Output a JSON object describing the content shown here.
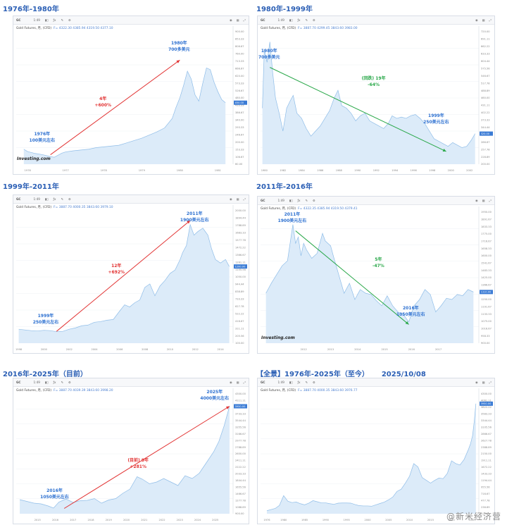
{
  "panels": [
    {
      "title": "1976年-1980年",
      "legend": "Gold Futures, 月, (CFD)",
      "ohlc": "F= 4322.30  4385.94  4319.50  4377.10",
      "show_logo": true,
      "logo_text": "Investing.com",
      "chart_data": {
        "type": "area",
        "x": [
          1975.9,
          1976.0,
          1976.2,
          1976.4,
          1976.6,
          1976.7,
          1976.9,
          1977.0,
          1977.2,
          1977.4,
          1977.6,
          1977.8,
          1978.0,
          1978.2,
          1978.4,
          1978.6,
          1978.8,
          1979.0,
          1979.2,
          1979.4,
          1979.6,
          1979.8,
          1979.9,
          1980.0,
          1980.1,
          1980.2,
          1980.3,
          1980.4,
          1980.5,
          1980.6,
          1980.7,
          1980.8,
          1980.9,
          1981.0,
          1981.1,
          1981.2
        ],
        "y": [
          155,
          140,
          128,
          120,
          108,
          104,
          130,
          138,
          145,
          150,
          155,
          165,
          170,
          175,
          180,
          195,
          210,
          225,
          245,
          265,
          290,
          350,
          420,
          480,
          560,
          650,
          600,
          500,
          460,
          570,
          670,
          660,
          580,
          520,
          470,
          450
        ],
        "xlim": [
          1975.7,
          1981.4
        ],
        "ylim": [
          60,
          900
        ],
        "x_ticks": [
          "1976",
          "1977",
          "1978",
          "1979",
          "1980",
          "1981"
        ],
        "y_ticks": [],
        "last_value": 450
      },
      "annotations": [
        {
          "text": [
            "1976年",
            "100美元左右"
          ],
          "color": "blue",
          "x": 1976.4,
          "y": 225
        },
        {
          "text": [
            "1980年",
            "700多美元"
          ],
          "color": "blue",
          "x": 1980.0,
          "y": 800
        },
        {
          "text": [
            "4年",
            "+600%"
          ],
          "color": "red",
          "x": 1978.0,
          "y": 450
        }
      ],
      "trend": {
        "from": [
          1976.6,
          120
        ],
        "to": [
          1980.0,
          720
        ],
        "color": "#e23434"
      }
    },
    {
      "title": "1980年-1999年",
      "legend": "Gold Futures, 月, (CFD)",
      "ohlc": "F= 3887.70  4299.45  3843.60  3983.00",
      "show_logo": false,
      "chart_data": {
        "type": "area",
        "x": [
          1979.8,
          1980.0,
          1980.3,
          1980.6,
          1980.9,
          1981.2,
          1981.6,
          1982.0,
          1982.4,
          1982.8,
          1983.1,
          1983.5,
          1984.0,
          1984.5,
          1985.0,
          1985.5,
          1986.0,
          1986.5,
          1987.0,
          1987.5,
          1987.9,
          1988.3,
          1988.8,
          1989.3,
          1989.8,
          1990.3,
          1990.8,
          1991.3,
          1991.8,
          1992.3,
          1992.8,
          1993.3,
          1993.7,
          1994.2,
          1994.7,
          1995.2,
          1995.7,
          1996.2,
          1996.7,
          1997.2,
          1997.7,
          1998.2,
          1998.7,
          1999.2,
          1999.7,
          2000.2,
          2000.7,
          2001.2,
          2001.7,
          2002.2,
          2002.6
        ],
        "y": [
          420,
          650,
          600,
          680,
          560,
          460,
          400,
          330,
          420,
          450,
          470,
          400,
          380,
          340,
          310,
          330,
          350,
          380,
          410,
          460,
          490,
          430,
          420,
          400,
          370,
          390,
          400,
          370,
          360,
          350,
          340,
          360,
          390,
          380,
          385,
          380,
          390,
          395,
          380,
          360,
          330,
          300,
          290,
          280,
          270,
          285,
          275,
          265,
          270,
          295,
          320
        ],
        "xlim": [
          1979.6,
          2003.0
        ],
        "ylim": [
          200,
          720
        ],
        "x_ticks": [
          "1980",
          "1982",
          "1984",
          "1986",
          "1988",
          "1990",
          "1992",
          "1994",
          "1996",
          "1998",
          "2000",
          "2002"
        ],
        "y_ticks": [],
        "last_value": 320
      },
      "annotations": [
        {
          "text": [
            "1980年",
            "700多美元"
          ],
          "color": "blue",
          "x": 1980.6,
          "y": 630
        },
        {
          "text": [
            "(回跌) 19年",
            "-64%"
          ],
          "color": "green",
          "x": 1991.8,
          "y": 520
        },
        {
          "text": [
            "1999年",
            "250美元左右"
          ],
          "color": "blue",
          "x": 1998.5,
          "y": 375
        }
      ],
      "trend": {
        "from": [
          1980.6,
          580
        ],
        "to": [
          1999.5,
          250
        ],
        "color": "#2aa84a"
      }
    },
    {
      "title": "1999年-2011年",
      "legend": "Gold Futures, 月, (CFD)",
      "ohlc": "F= 3887.70  4000.35  3843.60  3979.10",
      "show_logo": false,
      "chart_data": {
        "type": "area",
        "x": [
          1998.0,
          1998.5,
          1999.0,
          1999.5,
          2000.0,
          2000.5,
          2001.0,
          2001.5,
          2002.0,
          2002.5,
          2003.0,
          2003.5,
          2004.0,
          2004.5,
          2005.0,
          2005.5,
          2006.0,
          2006.4,
          2006.8,
          2007.2,
          2007.6,
          2008.0,
          2008.4,
          2008.8,
          2009.2,
          2009.6,
          2010.0,
          2010.4,
          2010.8,
          2011.0,
          2011.3,
          2011.6,
          2011.9,
          2012.2,
          2012.6,
          2013.0,
          2013.3,
          2013.6,
          2014.0,
          2014.4,
          2014.7
        ],
        "y": [
          300,
          290,
          280,
          275,
          285,
          280,
          265,
          270,
          300,
          320,
          350,
          360,
          400,
          410,
          430,
          440,
          560,
          650,
          620,
          680,
          720,
          900,
          950,
          780,
          920,
          1000,
          1100,
          1150,
          1300,
          1400,
          1500,
          1800,
          1650,
          1700,
          1750,
          1650,
          1450,
          1300,
          1250,
          1300,
          1200
        ],
        "xlim": [
          1997.8,
          2015.0
        ],
        "ylim": [
          100,
          2000
        ],
        "x_ticks": [
          "1998",
          "2000",
          "2002",
          "2004",
          "2006",
          "2008",
          "2010",
          "2012",
          "2014"
        ],
        "y_ticks": [],
        "last_value": 1200
      },
      "annotations": [
        {
          "text": [
            "1999年",
            "250美元左右"
          ],
          "color": "blue",
          "x": 2000.2,
          "y": 430
        },
        {
          "text": [
            "12年",
            "+692%"
          ],
          "color": "red",
          "x": 2005.8,
          "y": 1150
        },
        {
          "text": [
            "2011年",
            "1900美元左右"
          ],
          "color": "blue",
          "x": 2012.0,
          "y": 1900
        }
      ],
      "trend": {
        "from": [
          2001.0,
          270
        ],
        "to": [
          2011.6,
          1860
        ],
        "color": "#e23434"
      }
    },
    {
      "title": "2011年-2016年",
      "legend": "Gold Futures, 月, (CFD)",
      "ohlc": "F= 4322.35  4385.94  4319.50  4379.41",
      "show_logo": true,
      "logo_text": "Investing.com",
      "chart_data": {
        "type": "area",
        "x": [
          2010.6,
          2010.8,
          2011.0,
          2011.2,
          2011.4,
          2011.6,
          2011.7,
          2011.8,
          2011.9,
          2012.0,
          2012.1,
          2012.3,
          2012.5,
          2012.7,
          2012.8,
          2013.0,
          2013.1,
          2013.3,
          2013.5,
          2013.7,
          2013.9,
          2014.1,
          2014.3,
          2014.5,
          2014.7,
          2014.9,
          2015.1,
          2015.3,
          2015.5,
          2015.7,
          2015.9,
          2016.1,
          2016.3,
          2016.5,
          2016.7,
          2016.9,
          2017.1,
          2017.3,
          2017.5,
          2017.7,
          2017.9,
          2018.1,
          2018.3
        ],
        "y": [
          1300,
          1380,
          1450,
          1520,
          1560,
          1850,
          1700,
          1750,
          1600,
          1700,
          1650,
          1580,
          1620,
          1780,
          1720,
          1680,
          1600,
          1450,
          1300,
          1380,
          1250,
          1330,
          1300,
          1290,
          1240,
          1200,
          1280,
          1200,
          1150,
          1130,
          1070,
          1200,
          1250,
          1330,
          1290,
          1150,
          1200,
          1260,
          1250,
          1290,
          1280,
          1330,
          1310
        ],
        "xlim": [
          2010.4,
          2018.5
        ],
        "ylim": [
          900,
          1950
        ],
        "x_ticks": [
          "2012",
          "2013",
          "2014",
          "2015",
          "2016",
          "2017"
        ],
        "y_ticks": [],
        "last_value": 1310
      },
      "annotations": [
        {
          "text": [
            "2011年",
            "1900美元左右"
          ],
          "color": "blue",
          "x": 2011.6,
          "y": 1900
        },
        {
          "text": [
            "5年",
            "-47%"
          ],
          "color": "green",
          "x": 2014.8,
          "y": 1540
        },
        {
          "text": [
            "2016年",
            "1050美元左右"
          ],
          "color": "blue",
          "x": 2016.0,
          "y": 1150
        }
      ],
      "trend": {
        "from": [
          2011.7,
          1800
        ],
        "to": [
          2015.9,
          1050
        ],
        "color": "#2aa84a"
      }
    },
    {
      "title": "2016年-2025年（目前）",
      "legend": "Gold Futures, 月, (CFD)",
      "ohlc": "F= 3887.70  4039.39  3843.60  3998.20",
      "show_logo": false,
      "chart_data": {
        "type": "area",
        "x": [
          2014.0,
          2014.4,
          2014.8,
          2015.2,
          2015.6,
          2015.9,
          2016.2,
          2016.6,
          2017.0,
          2017.4,
          2017.8,
          2018.2,
          2018.6,
          2019.0,
          2019.4,
          2019.8,
          2020.2,
          2020.6,
          2020.9,
          2021.3,
          2021.7,
          2022.1,
          2022.5,
          2022.9,
          2023.3,
          2023.7,
          2024.1,
          2024.5,
          2024.9,
          2025.2,
          2025.5,
          2025.8
        ],
        "y": [
          1300,
          1250,
          1200,
          1180,
          1120,
          1060,
          1230,
          1320,
          1220,
          1270,
          1280,
          1330,
          1200,
          1290,
          1330,
          1480,
          1600,
          1950,
          1880,
          1750,
          1800,
          1900,
          1800,
          1700,
          1980,
          1900,
          2050,
          2350,
          2650,
          2950,
          3400,
          3950
        ],
        "xlim": [
          2013.8,
          2026.0
        ],
        "ylim": [
          900,
          4300
        ],
        "x_ticks": [
          "2015",
          "2016",
          "2017",
          "2018",
          "2019",
          "2020",
          "2021",
          "2022",
          "2023",
          "2024",
          "2025"
        ],
        "y_ticks": [],
        "last_value": 3950
      },
      "annotations": [
        {
          "text": [
            "2016年",
            "1050美元左右"
          ],
          "color": "blue",
          "x": 2016.0,
          "y": 1450
        },
        {
          "text": [
            "(目前) 9年",
            "+281%"
          ],
          "color": "red",
          "x": 2020.7,
          "y": 2300
        },
        {
          "text": [
            "2025年",
            "4000美元左右"
          ],
          "color": "blue",
          "x": 2025.0,
          "y": 4250
        }
      ],
      "trend": {
        "from": [
          2016.5,
          1050
        ],
        "to": [
          2025.8,
          3950
        ],
        "color": "#e23434"
      }
    },
    {
      "title": "【全景】1976年-2025年（至今）",
      "title_extra": "2025/10/08",
      "legend": "Gold Futures, 月, (CFD)",
      "ohlc": "F= 3887.70  4000.35  3843.60  3976.77",
      "show_logo": false,
      "chart_data": {
        "type": "area",
        "x": [
          1976,
          1977,
          1978,
          1979,
          1980,
          1981,
          1982,
          1983,
          1984,
          1985,
          1986,
          1987,
          1988,
          1989,
          1990,
          1991,
          1992,
          1993,
          1994,
          1995,
          1996,
          1997,
          1998,
          1999,
          2000,
          2001,
          2002,
          2003,
          2004,
          2005,
          2006,
          2007,
          2008,
          2009,
          2010,
          2011,
          2012,
          2013,
          2014,
          2015,
          2016,
          2017,
          2018,
          2019,
          2020,
          2021,
          2022,
          2023,
          2024,
          2024.5,
          2025,
          2025.4,
          2025.8
        ],
        "y": [
          110,
          150,
          190,
          300,
          650,
          450,
          400,
          420,
          360,
          320,
          380,
          470,
          430,
          390,
          390,
          360,
          340,
          380,
          385,
          385,
          380,
          330,
          290,
          280,
          280,
          270,
          320,
          370,
          420,
          500,
          600,
          800,
          880,
          1100,
          1350,
          1800,
          1680,
          1300,
          1200,
          1100,
          1200,
          1280,
          1260,
          1450,
          1900,
          1800,
          1750,
          1950,
          2300,
          2500,
          2800,
          3300,
          3950
        ],
        "xlim": [
          1974.5,
          2026.5
        ],
        "ylim": [
          0,
          4300
        ],
        "x_ticks": [
          "1976",
          "1980",
          "1985",
          "1990",
          "1995",
          "2000",
          "2005",
          "2010",
          "2015",
          "2020",
          "2025"
        ],
        "y_ticks": [],
        "last_value": 3950
      },
      "annotations": [],
      "trend": null
    }
  ],
  "watermark": "@新米经济营"
}
